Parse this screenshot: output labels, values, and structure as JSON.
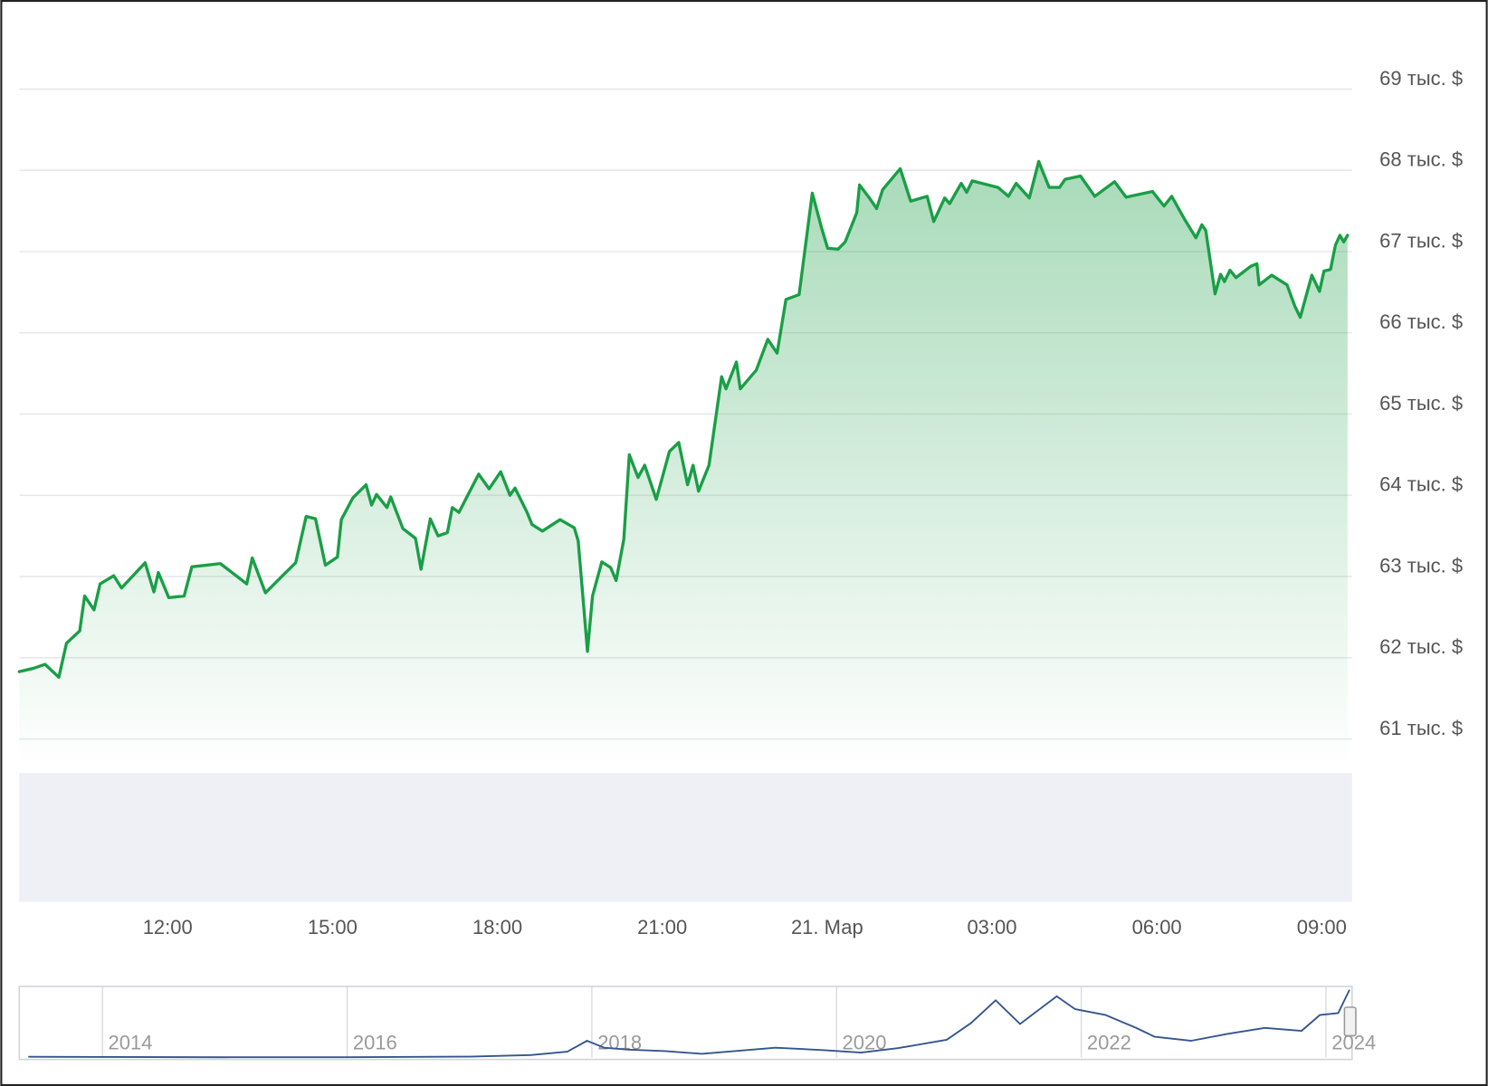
{
  "chart_data": [
    {
      "type": "line",
      "x": [
        9.3,
        9.56,
        9.77,
        10.02,
        10.16,
        10.4,
        10.49,
        10.66,
        10.77,
        11.02,
        11.16,
        11.59,
        11.75,
        11.83,
        12.02,
        12.3,
        12.44,
        12.96,
        13.44,
        13.54,
        13.78,
        14.09,
        14.33,
        14.52,
        14.69,
        14.87,
        15.09,
        15.16,
        15.37,
        15.61,
        15.71,
        15.8,
        15.99,
        16.06,
        16.28,
        16.51,
        16.61,
        16.78,
        16.92,
        17.09,
        17.18,
        17.3,
        17.66,
        17.85,
        18.06,
        18.23,
        18.32,
        18.54,
        18.63,
        18.82,
        19.14,
        19.4,
        19.47,
        19.64,
        19.73,
        19.9,
        20.06,
        20.16,
        20.3,
        20.4,
        20.56,
        20.68,
        20.89,
        21.13,
        21.3,
        21.46,
        21.56,
        21.66,
        21.85,
        22.08,
        22.16,
        22.35,
        22.42,
        22.71,
        22.92,
        23.09,
        23.25,
        23.49,
        23.73,
        23.9,
        24.01,
        24.2,
        24.33,
        24.54,
        24.59,
        24.78,
        24.9,
        25.01,
        25.33,
        25.52,
        25.82,
        25.94,
        26.14,
        26.23,
        26.44,
        26.54,
        26.64,
        27.11,
        27.3,
        27.44,
        27.68,
        27.85,
        28.04,
        28.23,
        28.33,
        28.61,
        28.87,
        29.23,
        29.44,
        29.92,
        30.13,
        30.27,
        30.51,
        30.71,
        30.82,
        30.89,
        31.06,
        31.16,
        31.23,
        31.33,
        31.44,
        31.71,
        31.82,
        31.86,
        32.09,
        32.37,
        32.51,
        32.61,
        32.82,
        32.96,
        33.04,
        33.16,
        33.25,
        33.33,
        33.4,
        33.47
      ],
      "values": [
        61.83,
        61.87,
        61.92,
        61.76,
        62.18,
        62.33,
        62.76,
        62.59,
        62.91,
        63.01,
        62.86,
        63.17,
        62.81,
        63.05,
        62.74,
        62.76,
        63.12,
        63.16,
        62.91,
        63.23,
        62.8,
        63.01,
        63.17,
        63.74,
        63.71,
        63.14,
        63.24,
        63.7,
        63.97,
        64.13,
        63.88,
        64.01,
        63.85,
        63.98,
        63.59,
        63.47,
        63.09,
        63.71,
        63.5,
        63.54,
        63.85,
        63.79,
        64.26,
        64.08,
        64.29,
        64.0,
        64.09,
        63.79,
        63.64,
        63.56,
        63.7,
        63.6,
        63.44,
        62.08,
        62.76,
        63.18,
        63.11,
        62.95,
        63.46,
        64.5,
        64.22,
        64.37,
        63.95,
        64.54,
        64.65,
        64.13,
        64.37,
        64.05,
        64.37,
        65.46,
        65.31,
        65.64,
        65.31,
        65.54,
        65.92,
        65.75,
        66.41,
        66.47,
        67.72,
        67.29,
        67.04,
        67.03,
        67.12,
        67.48,
        67.82,
        67.65,
        67.53,
        67.76,
        68.02,
        67.62,
        67.68,
        67.37,
        67.66,
        67.59,
        67.84,
        67.73,
        67.87,
        67.79,
        67.68,
        67.84,
        67.66,
        68.11,
        67.79,
        67.79,
        67.89,
        67.93,
        67.68,
        67.86,
        67.67,
        67.74,
        67.56,
        67.68,
        67.39,
        67.17,
        67.33,
        67.26,
        66.48,
        66.72,
        66.63,
        66.77,
        66.68,
        66.82,
        66.85,
        66.59,
        66.71,
        66.59,
        66.33,
        66.19,
        66.71,
        66.51,
        66.76,
        66.78,
        67.08,
        67.2,
        67.12,
        67.2
      ],
      "color": "#1a9e46",
      "xlim": [
        9.3,
        33.5
      ],
      "xticks": [
        {
          "value": 12,
          "label": "12:00"
        },
        {
          "value": 15,
          "label": "15:00"
        },
        {
          "value": 18,
          "label": "18:00"
        },
        {
          "value": 21,
          "label": "21:00"
        },
        {
          "value": 24,
          "label": "21. Мар"
        },
        {
          "value": 27,
          "label": "03:00"
        },
        {
          "value": 30,
          "label": "06:00"
        },
        {
          "value": 33,
          "label": "09:00"
        }
      ],
      "ylim": [
        60.64,
        69.98
      ],
      "yticks": [
        {
          "value": 61,
          "label": "61 тыс. $"
        },
        {
          "value": 62,
          "label": "62 тыс. $"
        },
        {
          "value": 63,
          "label": "63 тыс. $"
        },
        {
          "value": 64,
          "label": "64 тыс. $"
        },
        {
          "value": 65,
          "label": "65 тыс. $"
        },
        {
          "value": 66,
          "label": "66 тыс. $"
        },
        {
          "value": 67,
          "label": "67 тыс. $"
        },
        {
          "value": 68,
          "label": "68 тыс. $"
        },
        {
          "value": 69,
          "label": "69 тыс. $"
        }
      ],
      "grid": true
    },
    {
      "type": "line",
      "x": [
        2013.4,
        2014,
        2015,
        2016,
        2017,
        2017.5,
        2017.8,
        2017.96,
        2018.1,
        2018.3,
        2018.6,
        2018.9,
        2019.5,
        2019.9,
        2020.2,
        2020.5,
        2020.9,
        2021.1,
        2021.3,
        2021.5,
        2021.8,
        2021.95,
        2022.2,
        2022.45,
        2022.6,
        2022.9,
        2023.2,
        2023.5,
        2023.8,
        2023.95,
        2024.1,
        2024.19
      ],
      "values": [
        0.8,
        0.6,
        0.3,
        0.4,
        1,
        2.5,
        6,
        17,
        10,
        8,
        6.5,
        3.7,
        10,
        7.5,
        5,
        9.5,
        18,
        35,
        58,
        34,
        62,
        49,
        43,
        30,
        21,
        17,
        24,
        30,
        27,
        43,
        45,
        68
      ],
      "color": "#34558f",
      "xlim": [
        2013.32,
        2024.19
      ],
      "xticks": [
        2014,
        2016,
        2018,
        2020,
        2022,
        2024
      ],
      "ylim": [
        0,
        72
      ],
      "grid": true
    }
  ]
}
